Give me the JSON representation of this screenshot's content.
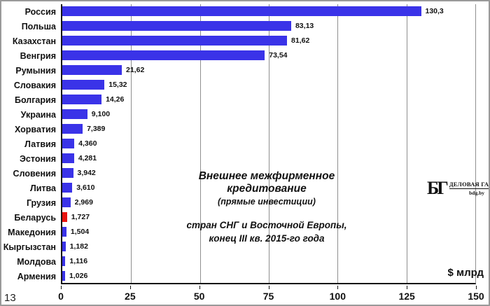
{
  "page_number": "13",
  "colors": {
    "bar": "#3a33e8",
    "highlight": "#e81410",
    "gridline": "#8f8f8f",
    "axis": "#151515"
  },
  "title": {
    "line1": "Внешнее межфирменное кредитование",
    "line2": "(прямые инвестиции)",
    "line3": "стран СНГ и Восточной  Европы,",
    "line4": "конец III кв. 2015-го года"
  },
  "logo": {
    "monogram": "БГ",
    "name": "ДЕЛОВАЯ ГАЗЕТА",
    "site": "bdg.by"
  },
  "axis": {
    "unit_label": "$ млрд"
  },
  "chart_data": {
    "type": "bar",
    "orientation": "horizontal",
    "title": "Внешнее межфирменное кредитование (прямые инвестиции) стран СНГ и Восточной Европы, конец III кв. 2015-го года",
    "xlabel": "$ млрд",
    "ylabel": "",
    "xlim": [
      0,
      150
    ],
    "x_ticks": [
      0,
      25,
      50,
      75,
      100,
      125,
      150
    ],
    "grid": "vertical",
    "legend": false,
    "categories": [
      "Россия",
      "Польша",
      "Казахстан",
      "Венгрия",
      "Румыния",
      "Словакия",
      "Болгария",
      "Украина",
      "Хорватия",
      "Латвия",
      "Эстония",
      "Словения",
      "Литва",
      "Грузия",
      "Беларусь",
      "Македония",
      "Кыргызстан",
      "Молдова",
      "Армения"
    ],
    "values": [
      130.3,
      83.13,
      81.62,
      73.54,
      21.62,
      15.32,
      14.26,
      9.1,
      7.389,
      4.36,
      4.281,
      3.942,
      3.61,
      2.969,
      1.727,
      1.504,
      1.182,
      1.116,
      1.026
    ],
    "value_labels": [
      "130,3",
      "83,13",
      "81,62",
      "73,54",
      "21,62",
      "15,32",
      "14,26",
      "9,100",
      "7,389",
      "4,360",
      "4,281",
      "3,942",
      "3,610",
      "2,969",
      "1,727",
      "1,504",
      "1,182",
      "1,116",
      "1,026"
    ],
    "highlighted_category": "Беларусь",
    "highlight_index": 14
  }
}
